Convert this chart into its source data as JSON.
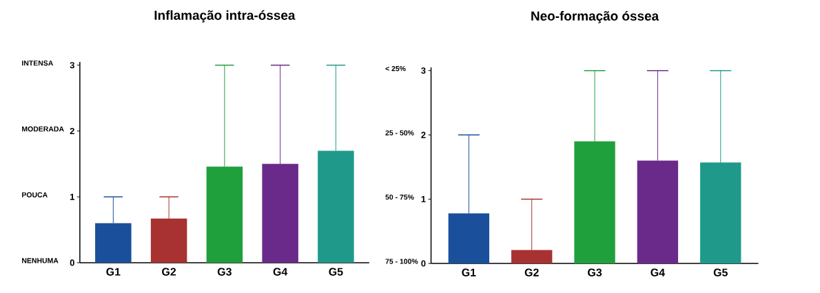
{
  "chart_data": [
    {
      "type": "bar",
      "title": "Inflamação intra-óssea",
      "categories": [
        "G1",
        "G2",
        "G3",
        "G4",
        "G5"
      ],
      "values": [
        0.6,
        0.67,
        1.46,
        1.5,
        1.7
      ],
      "errors": [
        [
          0.6,
          1
        ],
        [
          0.67,
          1
        ],
        [
          1.46,
          3
        ],
        [
          1.5,
          3
        ],
        [
          1.7,
          3
        ]
      ],
      "colors": [
        "#1a4f9c",
        "#a83232",
        "#1fa03c",
        "#6a2a8a",
        "#1f9a8a"
      ],
      "ylim": [
        0,
        3.05
      ],
      "yticks": [
        0,
        1,
        2,
        3
      ],
      "grid": false,
      "annotations": [
        "NENHUMA",
        "POUCA",
        "MODERADA",
        "INTENSA"
      ]
    },
    {
      "type": "bar",
      "title": "Neo-formação óssea",
      "categories": [
        "G1",
        "G2",
        "G3",
        "G4",
        "G5"
      ],
      "values": [
        0.78,
        0.21,
        1.9,
        1.6,
        1.57
      ],
      "errors": [
        [
          0.78,
          2
        ],
        [
          0.21,
          1
        ],
        [
          1.9,
          3
        ],
        [
          1.6,
          3
        ],
        [
          1.57,
          3
        ]
      ],
      "colors": [
        "#1a4f9c",
        "#a83232",
        "#1fa03c",
        "#6a2a8a",
        "#1f9a8a"
      ],
      "ylim": [
        0,
        3.05
      ],
      "yticks": [
        0,
        1,
        2,
        3
      ],
      "grid": false,
      "annotations": [
        "75 - 100%",
        "50 - 75%",
        "25 - 50%",
        "< 25%"
      ]
    }
  ]
}
